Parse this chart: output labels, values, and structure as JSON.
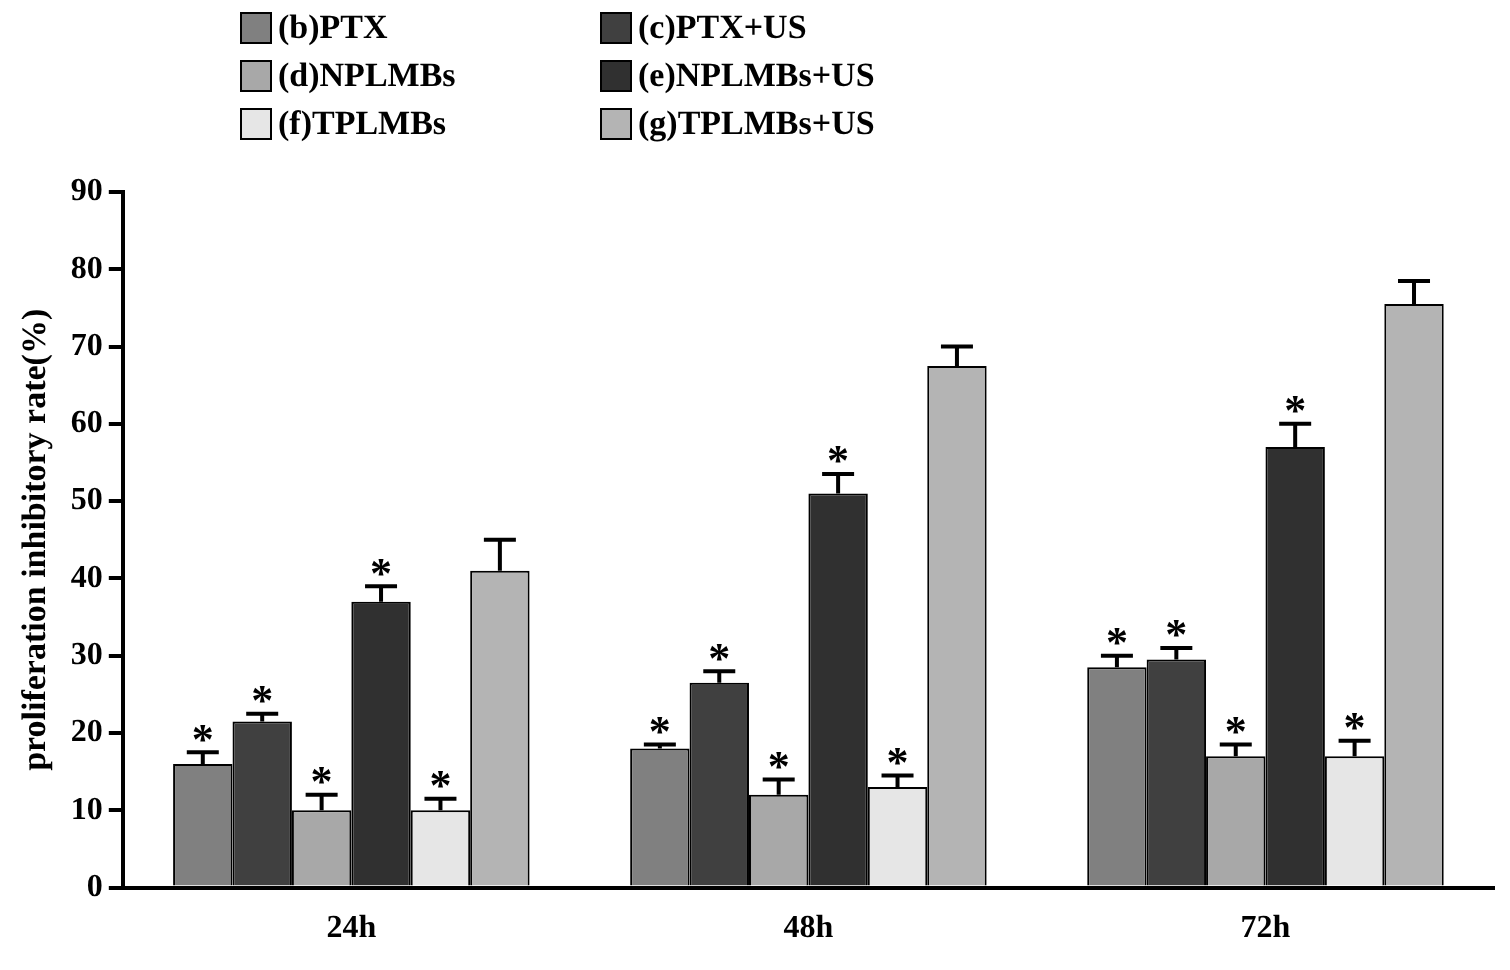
{
  "chart_data": {
    "type": "bar",
    "ylabel": "proliferation inhibitory rate(%)",
    "categories": [
      "24h",
      "48h",
      "72h"
    ],
    "ylim": [
      0,
      90
    ],
    "yticks": [
      0,
      10,
      20,
      30,
      40,
      50,
      60,
      70,
      80,
      90
    ],
    "grid": false,
    "legend": "top left",
    "series": [
      {
        "name": "(b)PTX",
        "color": "#808080",
        "values": [
          16,
          18,
          28.5
        ],
        "errors": [
          1.5,
          0.5,
          1.5
        ],
        "value_labels": [
          "*",
          "*",
          "*"
        ]
      },
      {
        "name": "(c)PTX+US",
        "color": "#404040",
        "values": [
          21.5,
          26.5,
          29.5
        ],
        "errors": [
          1,
          1.5,
          1.5
        ],
        "value_labels": [
          "*",
          "*",
          "*"
        ]
      },
      {
        "name": "(d)NPLMBs",
        "color": "#a8a8a8",
        "values": [
          10,
          12,
          17
        ],
        "errors": [
          2,
          2,
          1.5
        ],
        "value_labels": [
          "*",
          "*",
          "*"
        ]
      },
      {
        "name": "(e)NPLMBs+US",
        "color": "#303030",
        "values": [
          37,
          51,
          57
        ],
        "errors": [
          2,
          2.5,
          3
        ],
        "value_labels": [
          "*",
          "*",
          "*"
        ]
      },
      {
        "name": "(f)TPLMBs",
        "color": "#e6e6e6",
        "values": [
          10,
          13,
          17
        ],
        "errors": [
          1.5,
          1.5,
          2
        ],
        "value_labels": [
          "*",
          "*",
          "*"
        ]
      },
      {
        "name": "(g)TPLMBs+US",
        "color": "#b4b4b4",
        "values": [
          41,
          67.5,
          75.5
        ],
        "errors": [
          4,
          2.5,
          3
        ],
        "value_labels": [
          null,
          null,
          null
        ]
      }
    ]
  }
}
